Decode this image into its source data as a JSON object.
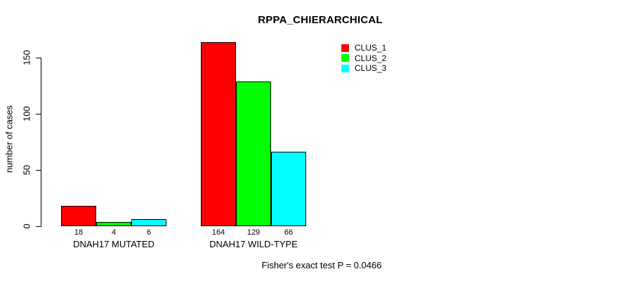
{
  "chart_data": {
    "type": "bar",
    "title": "RPPA_CHIERARCHICAL",
    "ylabel": "number of cases",
    "xlabel": "",
    "categories": [
      "DNAH17 MUTATED",
      "DNAH17 WILD-TYPE"
    ],
    "series": [
      {
        "name": "CLUS_1",
        "color": "#ff0000",
        "values": [
          18,
          164
        ]
      },
      {
        "name": "CLUS_2",
        "color": "#00ff00",
        "values": [
          4,
          129
        ]
      },
      {
        "name": "CLUS_3",
        "color": "#00ffff",
        "values": [
          6,
          66
        ]
      }
    ],
    "yticks": [
      0,
      50,
      100,
      150
    ],
    "ylim": [
      0,
      164
    ],
    "grid": false,
    "legend_position": "top-right",
    "bar_border_color": "#000000",
    "value_labels_shown": true,
    "footnote": "Fisher's exact test P = 0.0466"
  }
}
